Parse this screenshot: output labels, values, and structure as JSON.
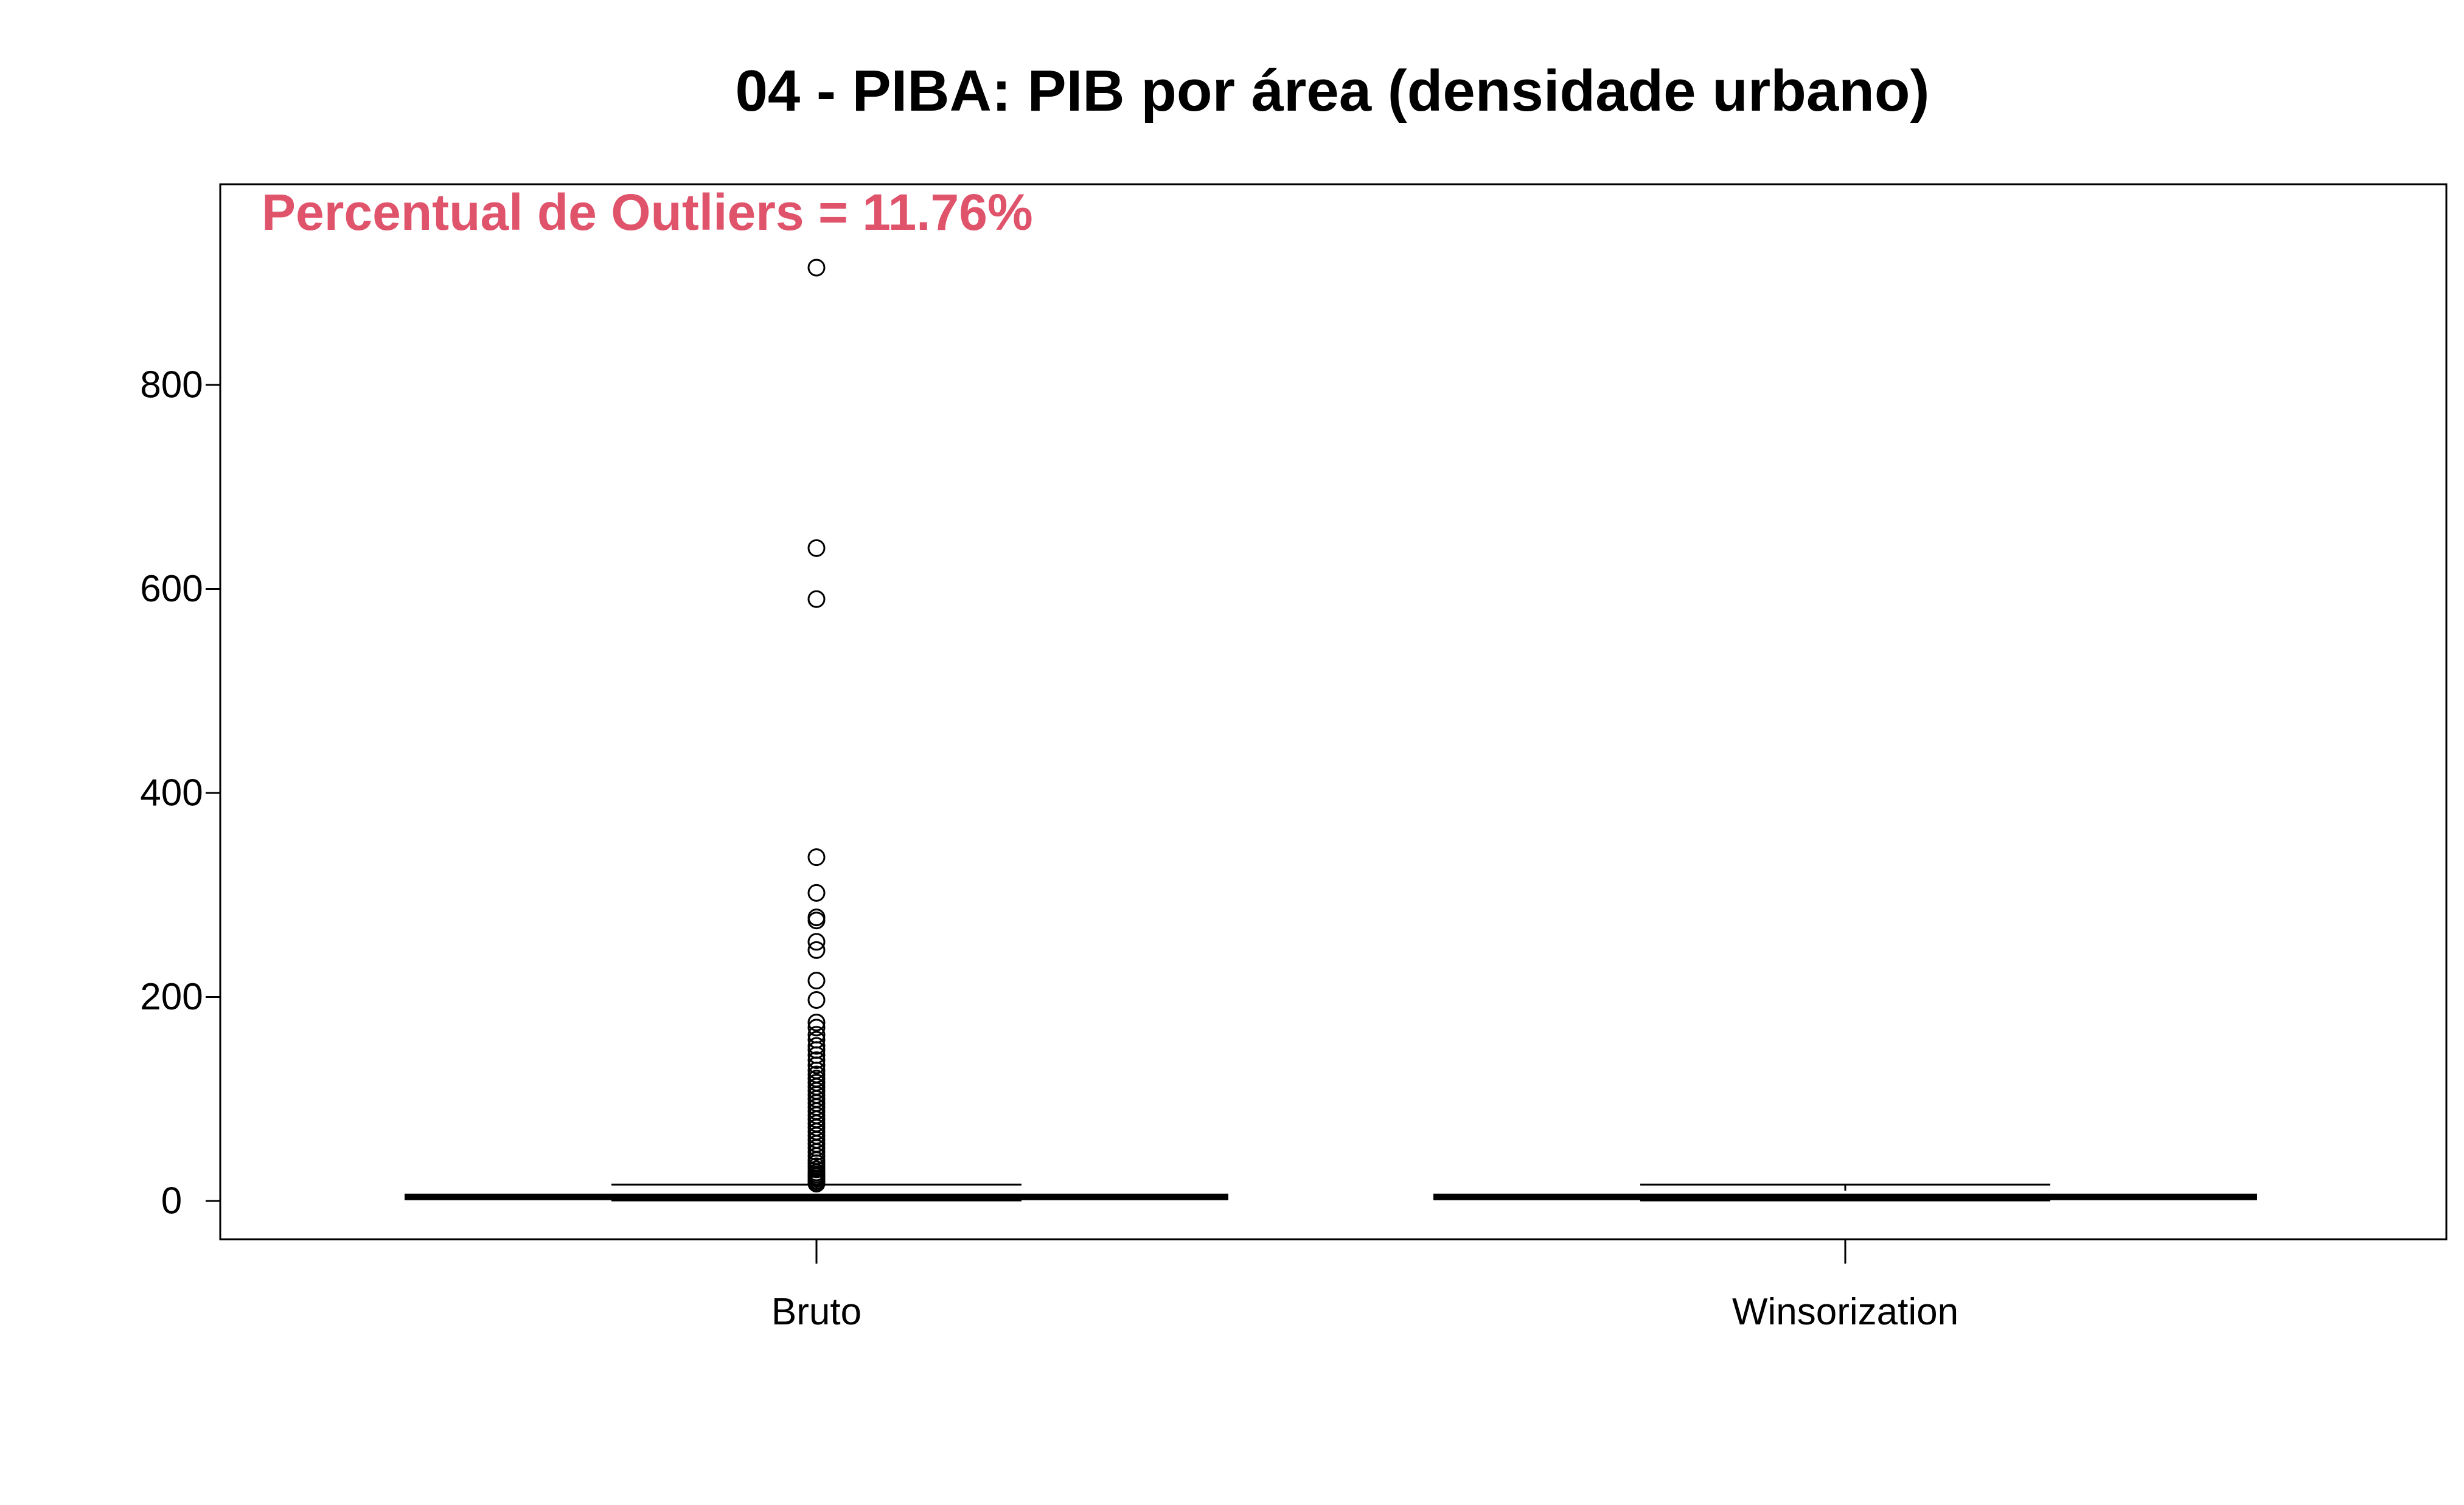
{
  "chart_data": {
    "type": "boxplot",
    "title": "04 - PIBA: PIB por área (densidade urbano)",
    "xlabel": "",
    "ylabel": "",
    "ylim": [
      -36,
      1000
    ],
    "yticks": [
      0,
      200,
      400,
      600,
      800
    ],
    "grid": false,
    "legend": "none",
    "annotation": {
      "text": "Percentual de Outliers = 11.76%",
      "color": "#DF536B"
    },
    "categories": [
      "Bruto",
      "Winsorization"
    ],
    "boxes": [
      {
        "category": "Bruto",
        "whisker_low": 0.5,
        "q1": 2.0,
        "median": 3.5,
        "q3": 6.0,
        "whisker_high": 16,
        "outliers": [
          915,
          640,
          590,
          337,
          302,
          278,
          275,
          254,
          246,
          216,
          197,
          175,
          170,
          163,
          158,
          152,
          148,
          143,
          138,
          133,
          128,
          124,
          120,
          116,
          112,
          108,
          104,
          100,
          96,
          92,
          88,
          84,
          80,
          76,
          72,
          68,
          64,
          60,
          56,
          52,
          48,
          44,
          40,
          37,
          34,
          31,
          28,
          26,
          24,
          22,
          20,
          18,
          17
        ]
      },
      {
        "category": "Winsorization",
        "whisker_low": 0.5,
        "q1": 2.0,
        "median": 3.5,
        "q3": 6.0,
        "whisker_high": 16,
        "outliers": []
      }
    ]
  }
}
